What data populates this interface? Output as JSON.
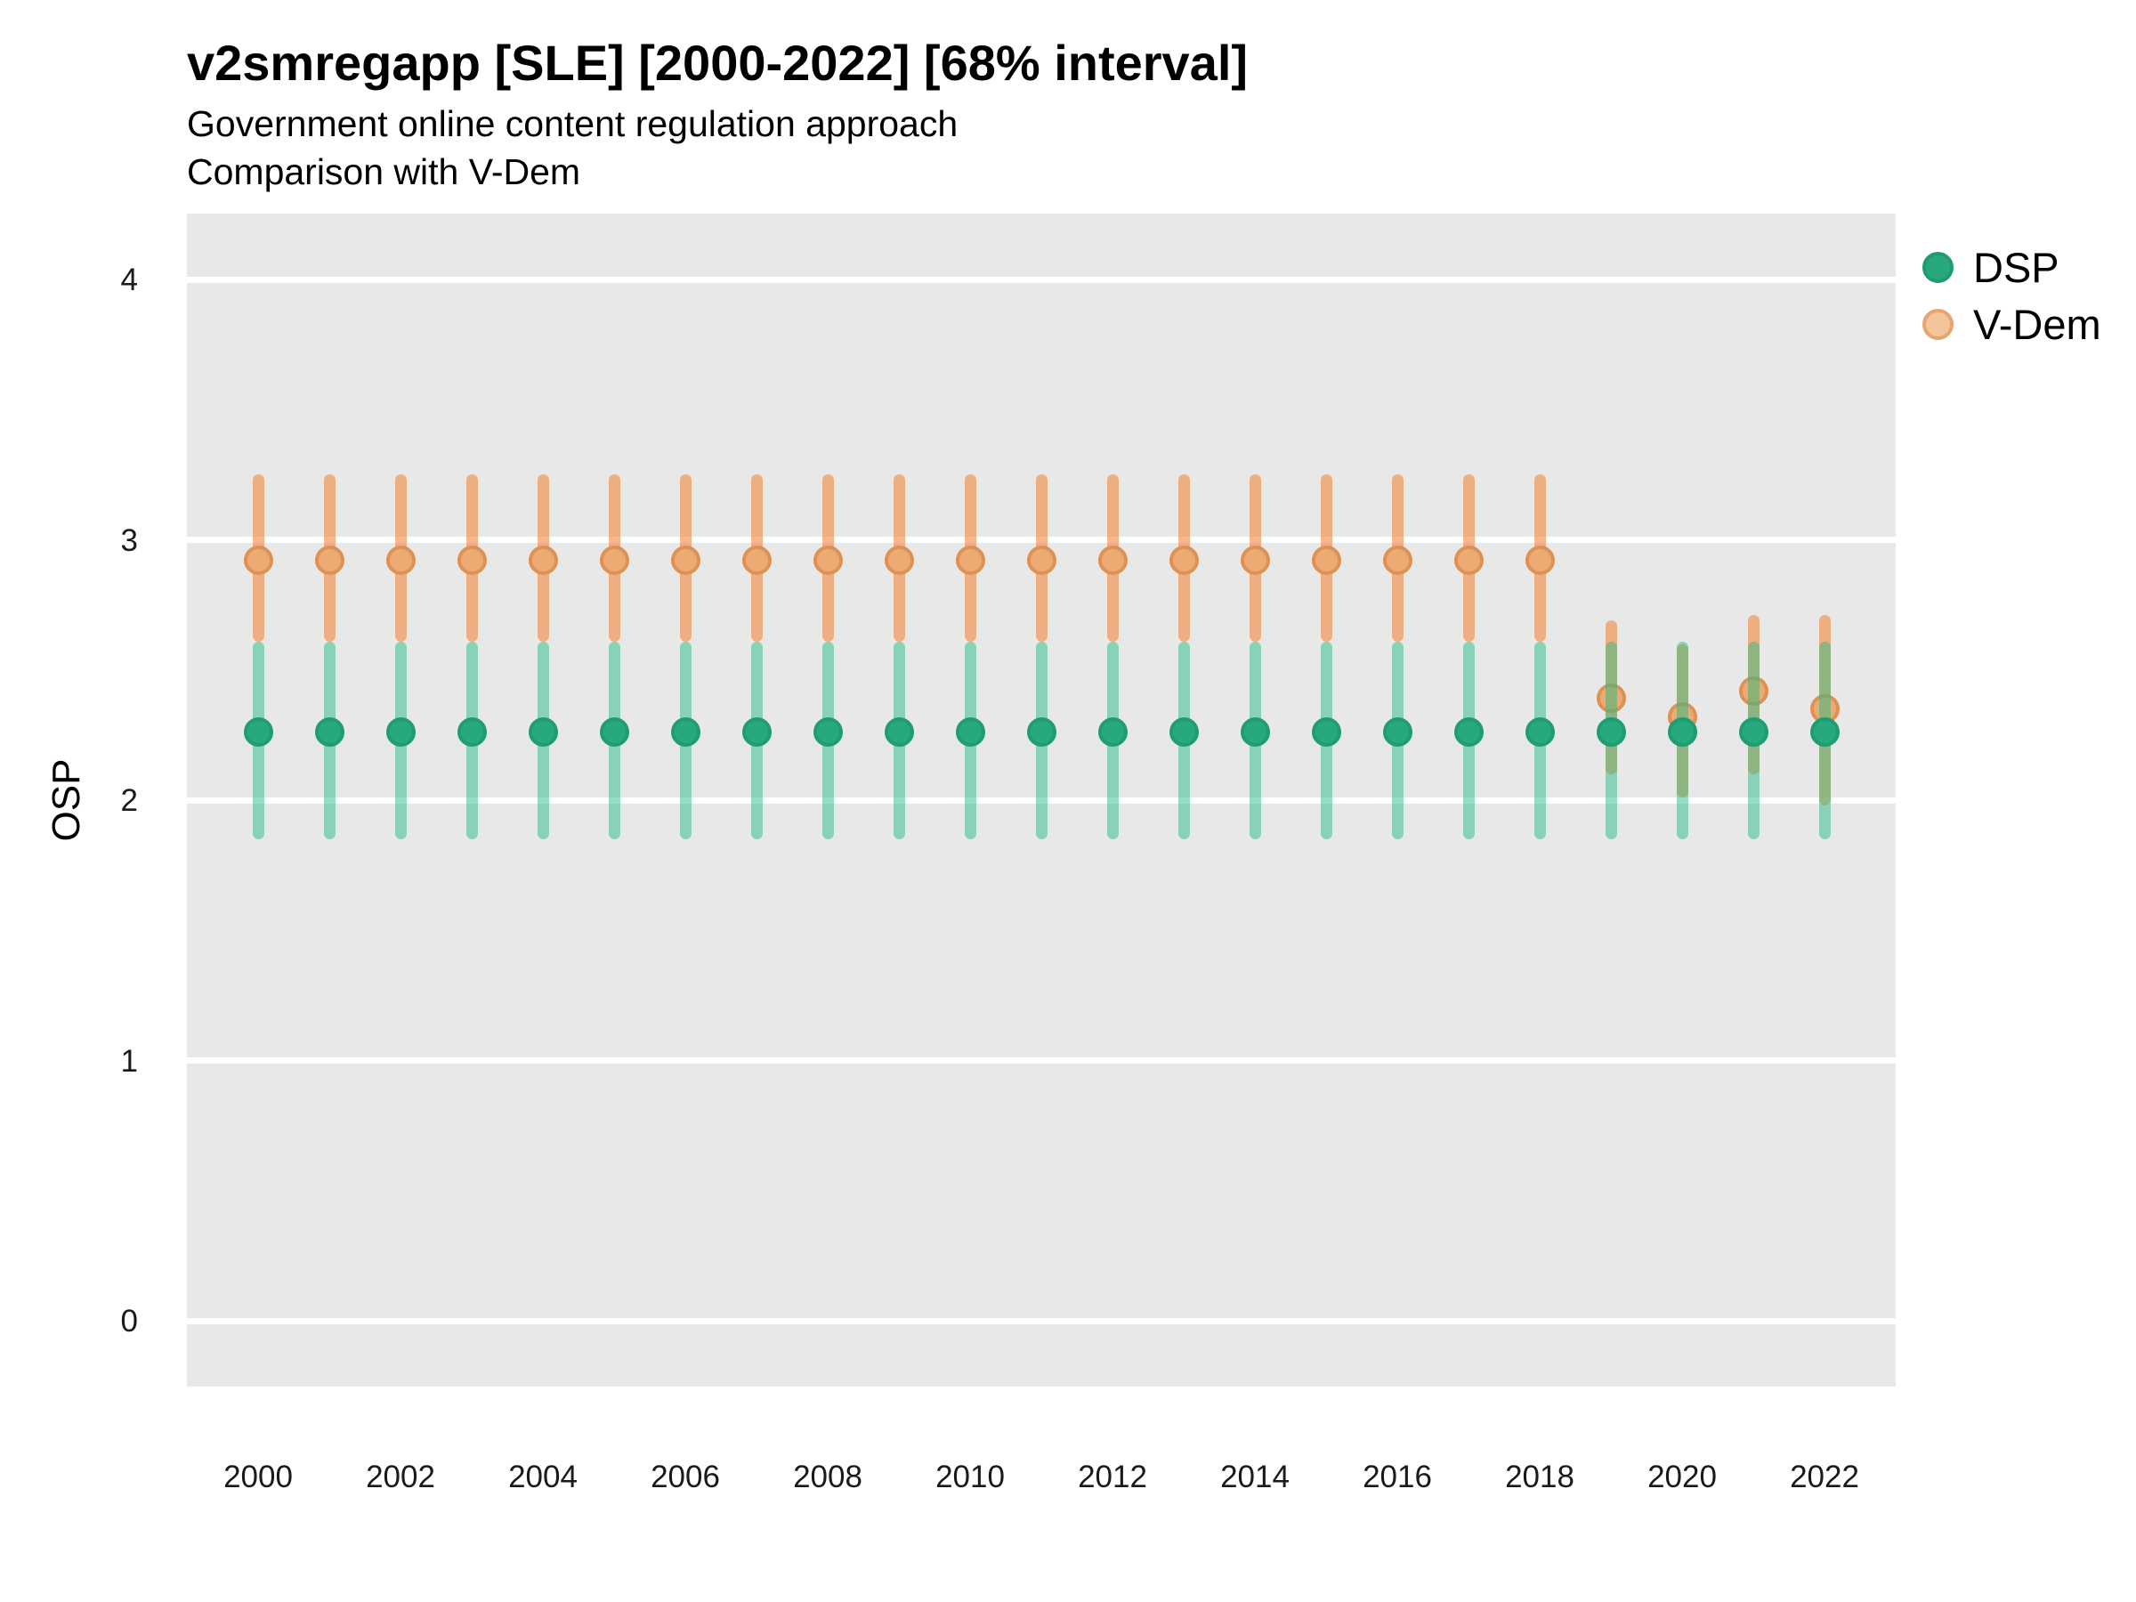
{
  "header": {
    "title": "v2smregapp [SLE] [2000-2022] [68% interval]",
    "subtitle1": "Government online content regulation approach",
    "subtitle2": "Comparison with V-Dem"
  },
  "axes": {
    "y_title": "OSP",
    "y_ticks": [
      4,
      3,
      2,
      1,
      0
    ],
    "x_ticks": [
      2000,
      2002,
      2004,
      2006,
      2008,
      2010,
      2012,
      2014,
      2016,
      2018,
      2020,
      2022
    ]
  },
  "legend": {
    "items": [
      {
        "id": "dsp",
        "label": "DSP",
        "fill": "#28a87d",
        "stroke": "#1f9d72"
      },
      {
        "id": "vdem",
        "label": "V-Dem",
        "fill": "#f4c59b",
        "stroke": "#e8a571"
      }
    ]
  },
  "colors": {
    "panel_background": "#e8e8e8",
    "gridline": "#ffffff",
    "dsp_point_fill": "#28a87d",
    "dsp_point_stroke": "#1f9d72",
    "vdem_point_fill": "#ecab72",
    "vdem_point_stroke": "#dd9254",
    "dsp_bar": "rgba(35,185,130,0.48)",
    "vdem_bar": "rgba(240,140,66,0.62)"
  },
  "chart_data": {
    "type": "scatter",
    "title": "v2smregapp [SLE] [2000-2022] [68% interval]",
    "subtitle": "Government online content regulation approach — Comparison with V-Dem",
    "xlabel": "",
    "ylabel": "OSP",
    "ylim": [
      -0.25,
      4.25
    ],
    "xlim": [
      1999,
      2023
    ],
    "grid": "white major gridlines on gray panel",
    "legend_position": "right",
    "interval": "68%",
    "x": [
      2000,
      2001,
      2002,
      2003,
      2004,
      2005,
      2006,
      2007,
      2008,
      2009,
      2010,
      2011,
      2012,
      2013,
      2014,
      2015,
      2016,
      2017,
      2018,
      2019,
      2020,
      2021,
      2022
    ],
    "series": [
      {
        "name": "DSP",
        "values": [
          2.26,
          2.26,
          2.26,
          2.26,
          2.26,
          2.26,
          2.26,
          2.26,
          2.26,
          2.26,
          2.26,
          2.26,
          2.26,
          2.26,
          2.26,
          2.26,
          2.26,
          2.26,
          2.26,
          2.26,
          2.26,
          2.26,
          2.26
        ],
        "lo": [
          1.85,
          1.85,
          1.85,
          1.85,
          1.85,
          1.85,
          1.85,
          1.85,
          1.85,
          1.85,
          1.85,
          1.85,
          1.85,
          1.85,
          1.85,
          1.85,
          1.85,
          1.85,
          1.85,
          1.85,
          1.85,
          1.85,
          1.85
        ],
        "hi": [
          2.61,
          2.61,
          2.61,
          2.61,
          2.61,
          2.61,
          2.61,
          2.61,
          2.61,
          2.61,
          2.61,
          2.61,
          2.61,
          2.61,
          2.61,
          2.61,
          2.61,
          2.61,
          2.61,
          2.61,
          2.61,
          2.61,
          2.61
        ]
      },
      {
        "name": "V-Dem",
        "values": [
          2.92,
          2.92,
          2.92,
          2.92,
          2.92,
          2.92,
          2.92,
          2.92,
          2.92,
          2.92,
          2.92,
          2.92,
          2.92,
          2.92,
          2.92,
          2.92,
          2.92,
          2.92,
          2.92,
          2.39,
          2.32,
          2.42,
          2.35
        ],
        "lo": [
          2.61,
          2.61,
          2.61,
          2.61,
          2.61,
          2.61,
          2.61,
          2.61,
          2.61,
          2.61,
          2.61,
          2.61,
          2.61,
          2.61,
          2.61,
          2.61,
          2.61,
          2.61,
          2.61,
          2.1,
          2.01,
          2.1,
          1.98
        ],
        "hi": [
          3.25,
          3.25,
          3.25,
          3.25,
          3.25,
          3.25,
          3.25,
          3.25,
          3.25,
          3.25,
          3.25,
          3.25,
          3.25,
          3.25,
          3.25,
          3.25,
          3.25,
          3.25,
          3.25,
          2.69,
          2.6,
          2.71,
          2.71
        ]
      }
    ]
  }
}
